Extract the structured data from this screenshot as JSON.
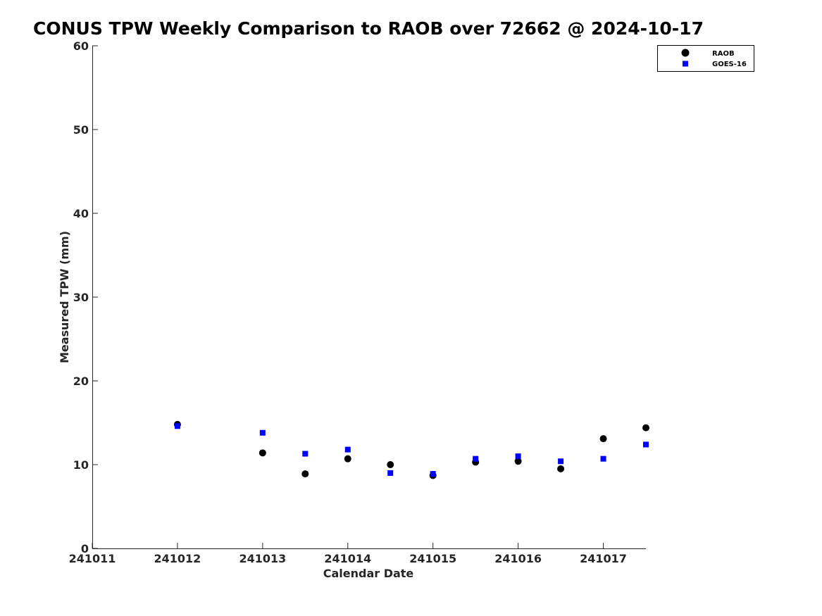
{
  "chart_data": {
    "type": "scatter",
    "title": "CONUS TPW Weekly Comparison to RAOB over 72662 @ 2024-10-17",
    "xlabel": "Calendar Date",
    "ylabel": "Measured TPW (mm)",
    "xlim": [
      "2024-10-11",
      "2024-10-17 12:00"
    ],
    "ylim": [
      0,
      60
    ],
    "x_ticks": [
      "2024-10-11",
      "2024-10-12",
      "2024-10-13",
      "2024-10-14",
      "2024-10-15",
      "2024-10-16",
      "2024-10-17"
    ],
    "x_tick_labels": [
      "241011",
      "241012",
      "241013",
      "241014",
      "241015",
      "241016",
      "241017"
    ],
    "y_ticks": [
      0,
      10,
      20,
      30,
      40,
      50,
      60
    ],
    "grid": false,
    "legend_position": "top-right",
    "series": [
      {
        "name": "RAOB",
        "marker": "circle",
        "color": "#000000",
        "x": [
          "2024-10-12 00:00",
          "2024-10-13 00:00",
          "2024-10-13 12:00",
          "2024-10-14 00:00",
          "2024-10-14 12:00",
          "2024-10-15 00:00",
          "2024-10-15 12:00",
          "2024-10-16 00:00",
          "2024-10-16 12:00",
          "2024-10-17 00:00",
          "2024-10-17 12:00"
        ],
        "y": [
          14.8,
          11.4,
          8.9,
          10.7,
          10.0,
          8.7,
          10.3,
          10.4,
          9.5,
          13.1,
          14.4
        ]
      },
      {
        "name": "GOES-16",
        "marker": "square",
        "color": "#0000ff",
        "x": [
          "2024-10-12 00:00",
          "2024-10-13 00:00",
          "2024-10-13 12:00",
          "2024-10-14 00:00",
          "2024-10-14 12:00",
          "2024-10-15 00:00",
          "2024-10-15 12:00",
          "2024-10-16 00:00",
          "2024-10-16 12:00",
          "2024-10-17 00:00",
          "2024-10-17 12:00"
        ],
        "y": [
          14.6,
          13.8,
          11.3,
          11.8,
          9.0,
          8.9,
          10.7,
          11.0,
          10.4,
          10.7,
          12.4
        ]
      }
    ]
  }
}
